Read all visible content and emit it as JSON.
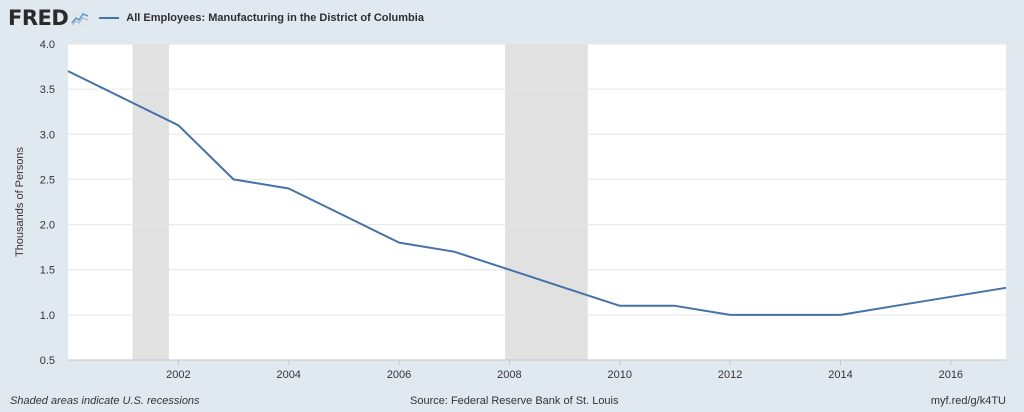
{
  "header": {
    "logo_text": "FRED",
    "series_title": "All Employees: Manufacturing in the District of Columbia"
  },
  "colors": {
    "line": "#4572a7",
    "recession": "#e1e1e1",
    "plot_bg": "#ffffff",
    "page_bg": "#e1e9f0",
    "grid": "#e6e6e6"
  },
  "footer": {
    "recession_note": "Shaded areas indicate U.S. recessions",
    "source": "Source: Federal Reserve Bank of St. Louis",
    "short_url": "myf.red/g/k4TU"
  },
  "chart_data": {
    "type": "line",
    "title": "All Employees: Manufacturing in the District of Columbia",
    "ylabel": "Thousands of Persons",
    "xlabel": "",
    "xlim": [
      2000,
      2017
    ],
    "ylim": [
      0.5,
      4.0
    ],
    "y_ticks": [
      "0.5",
      "1.0",
      "1.5",
      "2.0",
      "2.5",
      "3.0",
      "3.5",
      "4.0"
    ],
    "x_ticks": [
      "2002",
      "2004",
      "2006",
      "2008",
      "2010",
      "2012",
      "2014",
      "2016"
    ],
    "grid": true,
    "recessions": [
      [
        2001.17,
        2001.83
      ],
      [
        2007.92,
        2009.42
      ]
    ],
    "series": [
      {
        "name": "All Employees: Manufacturing in the District of Columbia",
        "x": [
          2000,
          2001,
          2002,
          2003,
          2004,
          2005,
          2006,
          2007,
          2008,
          2009,
          2010,
          2011,
          2012,
          2013,
          2014,
          2015,
          2016,
          2017
        ],
        "values": [
          3.7,
          3.4,
          3.1,
          2.5,
          2.4,
          2.1,
          1.8,
          1.7,
          1.5,
          1.3,
          1.1,
          1.1,
          1.0,
          1.0,
          1.0,
          1.1,
          1.2,
          1.3
        ]
      }
    ]
  }
}
